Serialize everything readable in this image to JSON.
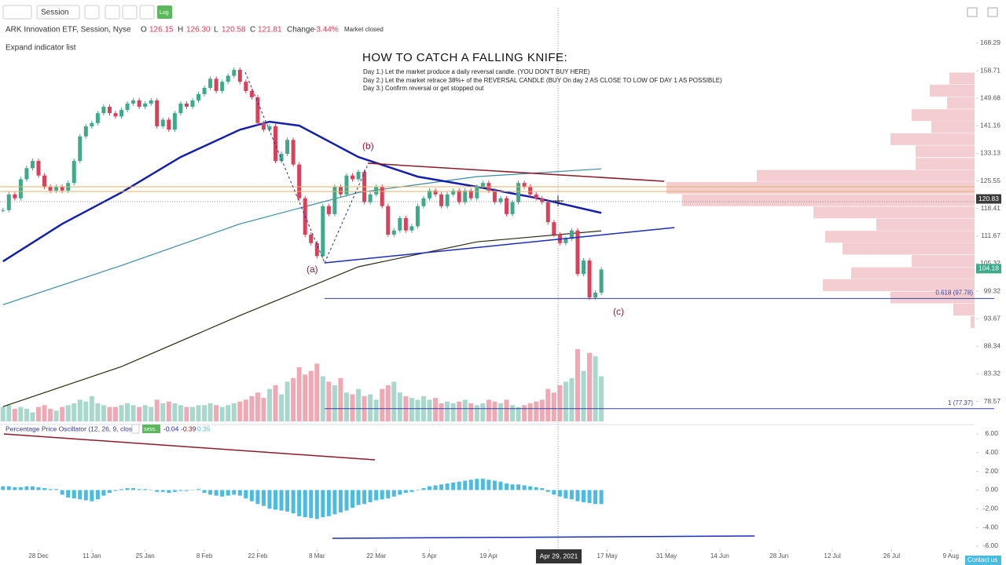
{
  "toolbar": {
    "session": "Session",
    "log": "Log"
  },
  "header": {
    "symbol": "ARK Innovation ETF, Session, Nyse",
    "o_label": "O",
    "open": "126.15",
    "h_label": "H",
    "high": "126.30",
    "l_label": "L",
    "low": "120.58",
    "c_label": "C",
    "close": "121.81",
    "change_label": "Change",
    "change": "-3.44%",
    "status": "Market closed"
  },
  "expand": "Expand indicator list",
  "annotation": {
    "title": "HOW TO CATCH A FALLING KNIFE:",
    "lines": [
      "Day 1.) Let the market produce a daily reversal candle. (YOU DON'T BUY HERE)",
      "Day 2.) Let the market retrace 38%+ of the REVERSAL CANDLE (BUY On day 2 AS CLOSE TO LOW OF DAY 1 AS POSSIBLE)",
      "Day 3.) Confirm reversal or get stopped out"
    ],
    "wave_a": "(a)",
    "wave_b": "(b)",
    "wave_c": "(c)"
  },
  "chart_data": {
    "type": "candlestick",
    "log_scale": true,
    "ylim": [
      75.3,
      171.1
    ],
    "yticks": [
      168.29,
      158.71,
      149.68,
      141.16,
      133.13,
      125.55,
      118.41,
      111.67,
      105.32,
      99.32,
      93.67,
      88.34,
      83.32,
      78.57
    ],
    "xlim": [
      -0.5,
      164
    ],
    "xticks": [
      {
        "value": 6,
        "label": "28 Dec"
      },
      {
        "value": 15,
        "label": "11 Jan"
      },
      {
        "value": 24,
        "label": "25 Jan"
      },
      {
        "value": 34,
        "label": "8 Feb"
      },
      {
        "value": 43,
        "label": "22 Feb"
      },
      {
        "value": 53,
        "label": "8 Mar"
      },
      {
        "value": 63,
        "label": "22 Mar"
      },
      {
        "value": 72,
        "label": "5 Apr"
      },
      {
        "value": 82,
        "label": "19 Apr"
      },
      {
        "value": 102,
        "label": "17 May"
      },
      {
        "value": 112,
        "label": "31 May"
      },
      {
        "value": 121,
        "label": "14 Jun"
      },
      {
        "value": 131,
        "label": "28 Jun"
      },
      {
        "value": 140,
        "label": "12 Jul"
      },
      {
        "value": 150,
        "label": "26 Jul"
      },
      {
        "value": 160,
        "label": "9 Aug"
      }
    ],
    "up_color": "#3fa98b",
    "down_color": "#d9405a",
    "close": [
      118,
      122,
      121,
      126,
      129,
      131,
      127,
      124,
      123,
      124,
      123,
      125,
      131,
      138,
      141,
      142,
      145,
      147,
      145,
      144,
      146,
      148,
      149,
      147,
      148,
      149,
      141,
      143,
      140,
      145,
      148,
      147,
      149,
      151,
      153,
      156,
      152,
      155,
      157,
      159,
      155,
      152,
      150,
      142,
      140,
      141,
      131,
      133,
      137,
      130,
      121,
      112,
      110,
      107,
      119,
      117,
      124,
      122,
      127,
      126,
      128,
      120,
      122,
      124,
      119,
      112,
      113,
      116,
      113,
      114,
      119,
      121,
      123,
      122,
      119,
      122,
      123,
      120,
      123,
      121,
      124,
      125,
      123,
      120,
      121,
      117,
      120,
      125,
      124,
      122,
      121,
      120,
      115,
      112,
      110,
      111,
      113,
      103,
      106,
      98,
      99,
      104
    ],
    "volume": [
      8,
      9,
      7,
      8,
      7,
      5,
      8,
      9,
      7,
      6,
      8,
      9,
      10,
      12,
      11,
      14,
      10,
      9,
      8,
      8,
      9,
      10,
      9,
      8,
      9,
      8,
      12,
      10,
      11,
      10,
      9,
      8,
      8,
      9,
      9,
      10,
      9,
      8,
      9,
      10,
      11,
      12,
      14,
      16,
      13,
      18,
      20,
      15,
      22,
      24,
      30,
      26,
      28,
      32,
      25,
      22,
      20,
      24,
      16,
      15,
      18,
      14,
      15,
      12,
      18,
      20,
      22,
      16,
      14,
      13,
      12,
      14,
      12,
      13,
      10,
      11,
      10,
      11,
      12,
      10,
      9,
      10,
      12,
      11,
      10,
      12,
      9,
      8,
      9,
      10,
      11,
      12,
      18,
      16,
      20,
      22,
      24,
      40,
      28,
      38,
      36,
      25
    ],
    "moving_averages": [
      {
        "color": "#2a2a10",
        "x": [
          0,
          20,
          40,
          60,
          80,
          101
        ],
        "values": [
          77.7,
          84.6,
          94.3,
          104.6,
          110.3,
          112.9
        ]
      },
      {
        "color": "#3b8aa0",
        "x": [
          0,
          20,
          40,
          60,
          80,
          101
        ],
        "values": [
          96.5,
          104.9,
          114.6,
          122.5,
          126.7,
          128.8
        ]
      },
      {
        "color": "#1420a8",
        "x": [
          0,
          10,
          20,
          30,
          40,
          45,
          50,
          60,
          70,
          80,
          90,
          101
        ],
        "values": [
          105.8,
          114.6,
          122.5,
          132.1,
          140.0,
          142.4,
          141.2,
          132.1,
          126.7,
          124.0,
          121.1,
          117.3
        ]
      }
    ],
    "volume_profile": {
      "color": "#f2c4c8",
      "prices": [
        156.1,
        152.1,
        148.2,
        144.4,
        140.8,
        137.2,
        133.7,
        130.2,
        126.9,
        123.7,
        120.5,
        117.4,
        114.4,
        111.5,
        108.7,
        105.9,
        103.2,
        100.6,
        98.0,
        95.5,
        93.0
      ],
      "values": [
        32,
        57,
        35,
        80,
        55,
        107,
        75,
        75,
        277,
        392,
        372,
        205,
        125,
        190,
        168,
        80,
        157,
        193,
        107,
        27,
        5
      ]
    },
    "fib_levels": [
      {
        "value": 97.78,
        "label": "0.618 (97.78)"
      },
      {
        "value": 77.37,
        "label": "1 (77.37)"
      }
    ],
    "price_labels": [
      {
        "value": 120.83,
        "color": "#3a3a3a"
      },
      {
        "value": 104.18,
        "color": "#3fa98b"
      }
    ],
    "cursor_label": "Apr 29, 2021",
    "oscillator": {
      "title": "Percentage Price Oscillator (12, 26, 9, close)",
      "badge": "sess.",
      "values": [
        "-0.04",
        "-0.39",
        "0.35"
      ],
      "ylim": [
        -6.34,
        6.67
      ],
      "yticks": [
        {
          "value": 6,
          "label": "6.00"
        },
        {
          "value": 4,
          "label": "4.00"
        },
        {
          "value": 2,
          "label": "2.00"
        },
        {
          "value": 0,
          "label": "0.00"
        },
        {
          "value": -2,
          "label": "-2.00"
        },
        {
          "value": -4,
          "label": "-4.00"
        },
        {
          "value": -6,
          "label": "-6.00"
        }
      ],
      "color": "#4cbbe0",
      "histogram": [
        0.4,
        0.4,
        0.3,
        0.3,
        0.4,
        0.4,
        0.3,
        0.2,
        0.1,
        0.1,
        -0.5,
        -0.8,
        -0.9,
        -1.0,
        -1.1,
        -1.2,
        -1.0,
        -0.6,
        -0.3,
        -0.1,
        0.1,
        0.2,
        0.2,
        0.1,
        0.1,
        0.0,
        -0.2,
        -0.2,
        -0.3,
        -0.2,
        -0.1,
        -0.1,
        0.0,
        0.1,
        -0.3,
        -0.5,
        -0.6,
        -0.7,
        -0.6,
        -0.5,
        -0.6,
        -0.9,
        -1.2,
        -1.5,
        -1.7,
        -2.0,
        -2.1,
        -2.2,
        -2.3,
        -2.5,
        -2.8,
        -2.9,
        -3.0,
        -3.1,
        -2.9,
        -2.8,
        -2.6,
        -2.4,
        -2.2,
        -1.9,
        -1.6,
        -1.5,
        -1.3,
        -1.1,
        -1.0,
        -0.9,
        -0.7,
        -0.5,
        -0.3,
        -0.2,
        0.0,
        0.2,
        0.4,
        0.5,
        0.6,
        0.7,
        0.8,
        0.9,
        1.0,
        1.1,
        1.2,
        1.2,
        1.1,
        1.0,
        0.9,
        0.7,
        0.6,
        0.6,
        0.5,
        0.4,
        0.3,
        0.2,
        -0.2,
        -0.5,
        -0.7,
        -0.9,
        -1.0,
        -1.2,
        -1.3,
        -1.4,
        -1.5,
        -1.5
      ]
    }
  },
  "footer": {
    "contact": "Contact us"
  }
}
